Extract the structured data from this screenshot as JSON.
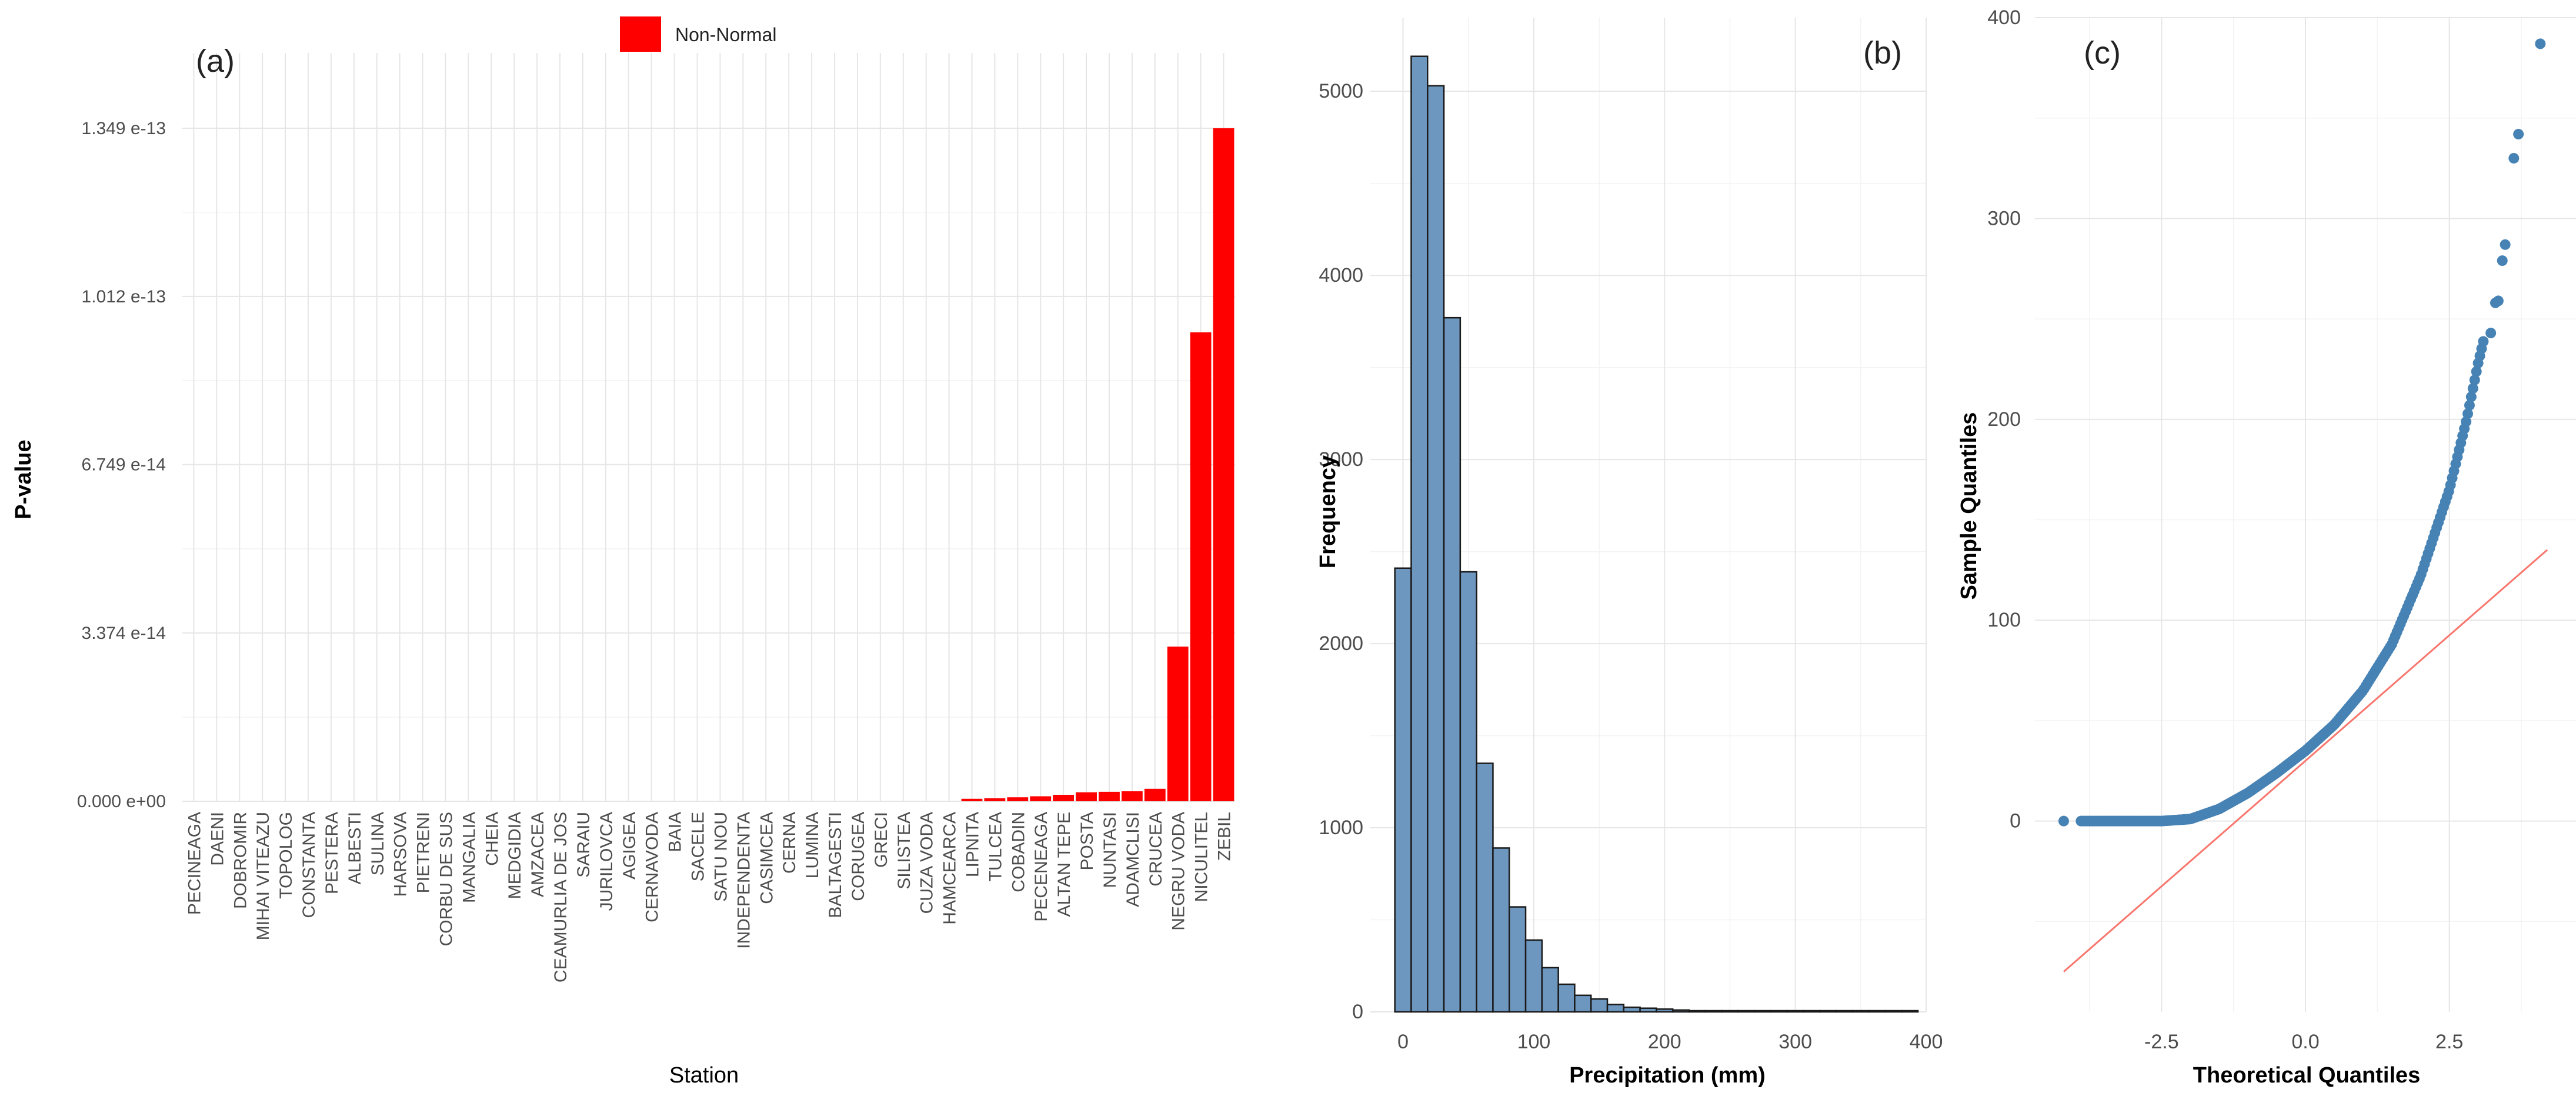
{
  "chart_data": [
    {
      "type": "bar",
      "panel_label": "(a)",
      "xlabel": "Station",
      "ylabel": "P-value",
      "legend": {
        "label": "Non-Normal",
        "color": "#ff0000",
        "position": "top-center"
      },
      "ylim": [
        0,
        1.5e-13
      ],
      "yticks": [
        0,
        3.374e-14,
        6.749e-14,
        1.012e-13,
        1.349e-13
      ],
      "ytick_labels": [
        "0.000 e+00",
        "3.374 e-14",
        "6.749 e-14",
        "1.012 e-13",
        "1.349 e-13"
      ],
      "categories": [
        "PECINEAGA",
        "DAENI",
        "DOBROMIR",
        "MIHAI VITEAZU",
        "TOPOLOG",
        "CONSTANTA",
        "PESTERA",
        "ALBESTI",
        "SULINA",
        "HARSOVA",
        "PIETRENI",
        "CORBU DE SUS",
        "MANGALIA",
        "CHEIA",
        "MEDGIDIA",
        "AMZACEA",
        "CEAMURLIA DE JOS",
        "SARAIU",
        "JURILOVCA",
        "AGIGEA",
        "CERNAVODA",
        "BAIA",
        "SACELE",
        "SATU NOU",
        "INDEPENDENTA",
        "CASIMCEA",
        "CERNA",
        "LUMINA",
        "BALTAGESTI",
        "CORUGEA",
        "GRECI",
        "SILISTEA",
        "CUZA VODA",
        "HAMCEARCA",
        "LIPNITA",
        "TULCEA",
        "COBADIN",
        "PECENEAGA",
        "ALTAN TEPE",
        "POSTA",
        "NUNTASI",
        "ADAMCLISI",
        "CRUCEA",
        "NEGRU VODA",
        "NICULITEL",
        "ZEBIL"
      ],
      "values": [
        0,
        0,
        0,
        0,
        0,
        0,
        0,
        0,
        0,
        0,
        0,
        0,
        0,
        0,
        0,
        0,
        0,
        0,
        0,
        0,
        0,
        0,
        0,
        0,
        0,
        0,
        0,
        0,
        0,
        0,
        0,
        0,
        0,
        0,
        5e-16,
        6e-16,
        8e-16,
        1e-15,
        1.3e-15,
        1.8e-15,
        1.9e-15,
        2e-15,
        2.5e-15,
        3.1e-14,
        9.4e-14,
        1.349e-13
      ],
      "color": "#ff0000"
    },
    {
      "type": "histogram",
      "panel_label": "(b)",
      "xlabel": "Precipitation (mm)",
      "ylabel": "Frequency",
      "xlim": [
        -25,
        400
      ],
      "ylim": [
        0,
        5400
      ],
      "xticks": [
        0,
        100,
        200,
        300,
        400
      ],
      "yticks": [
        0,
        1000,
        2000,
        3000,
        4000,
        5000
      ],
      "bin_width": 12.5,
      "bin_start": -6.25,
      "counts": [
        2410,
        5190,
        5030,
        3770,
        2390,
        1350,
        890,
        570,
        390,
        240,
        150,
        90,
        70,
        40,
        25,
        20,
        15,
        10,
        6,
        5,
        4,
        3,
        2,
        2,
        2,
        2,
        1,
        1,
        1,
        1,
        1,
        1
      ],
      "color": "#6d97bf",
      "edge_color": "#1a1a1a"
    },
    {
      "type": "scatter",
      "subtype": "qq-plot",
      "panel_label": "(c)",
      "xlabel": "Theoretical Quantiles",
      "ylabel": "Sample Quantiles",
      "xlim": [
        -4.7,
        4.7
      ],
      "ylim": [
        -95,
        400
      ],
      "xticks": [
        -2.5,
        0.0,
        2.5
      ],
      "xtick_labels": [
        "-2.5",
        "0.0",
        "2.5"
      ],
      "yticks": [
        0,
        100,
        200,
        300,
        400
      ],
      "point_color": "#4682b4",
      "reference_line": {
        "color": "#f8766d",
        "intercept": 30,
        "slope": 25
      },
      "quantile_curve": [
        [
          -4.2,
          0
        ],
        [
          -4.0,
          0
        ],
        [
          -3.5,
          0
        ],
        [
          -3.0,
          0
        ],
        [
          -2.5,
          0
        ],
        [
          -2.0,
          1
        ],
        [
          -1.5,
          6
        ],
        [
          -1.0,
          14
        ],
        [
          -0.5,
          24
        ],
        [
          0.0,
          35
        ],
        [
          0.5,
          48
        ],
        [
          1.0,
          65
        ],
        [
          1.5,
          88
        ],
        [
          2.0,
          122
        ],
        [
          2.5,
          165
        ],
        [
          2.8,
          200
        ],
        [
          3.0,
          228
        ],
        [
          3.1,
          240
        ]
      ],
      "tail_points": [
        [
          3.22,
          243
        ],
        [
          3.3,
          258
        ],
        [
          3.35,
          259
        ],
        [
          3.42,
          279
        ],
        [
          3.47,
          287
        ],
        [
          3.62,
          330
        ],
        [
          3.7,
          342
        ],
        [
          4.08,
          387
        ]
      ]
    }
  ]
}
